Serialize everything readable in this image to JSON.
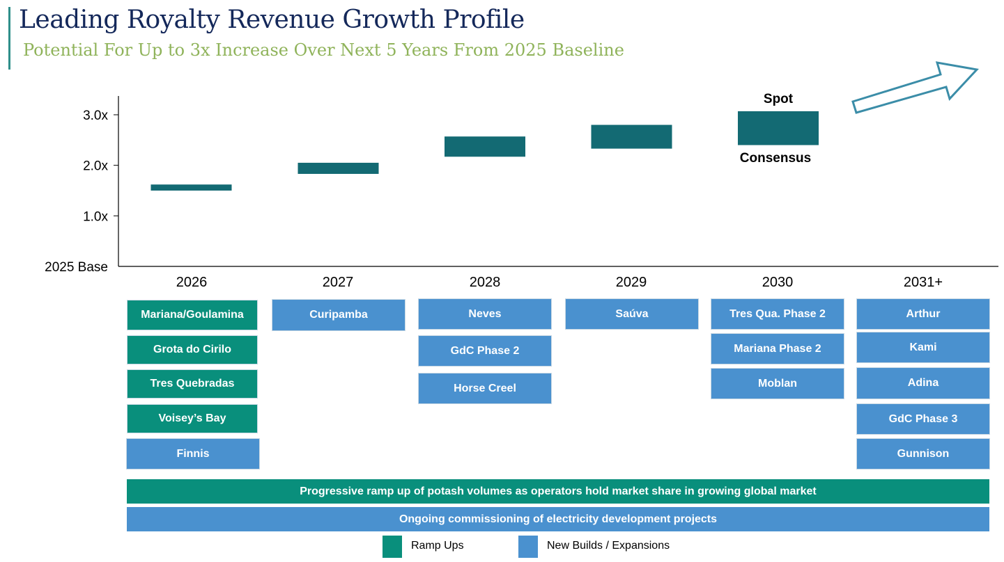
{
  "header": {
    "title": "Leading Royalty Revenue Growth Profile",
    "subtitle": "Potential For Up to 3x Increase Over Next 5 Years From 2025 Baseline"
  },
  "colors": {
    "bar": "#136a73",
    "ramp": "#098f7c",
    "new": "#4a91cf",
    "title": "#14285a",
    "subtitle": "#8fb35a",
    "arrow": "#3b8da8"
  },
  "chart_data": {
    "type": "bar",
    "subtype": "floating-range",
    "title": "Leading Royalty Revenue Growth Profile",
    "categories": [
      "2026",
      "2027",
      "2028",
      "2029",
      "2030"
    ],
    "series": [
      {
        "name": "Consensus (low)",
        "values": [
          1.5,
          1.83,
          2.17,
          2.33,
          2.4
        ]
      },
      {
        "name": "Spot (high)",
        "values": [
          1.62,
          2.05,
          2.57,
          2.8,
          3.07
        ]
      }
    ],
    "y_tick_labels": [
      "2025 Base",
      "1.0x",
      "2.0x",
      "3.0x"
    ],
    "y_tick_values": [
      0,
      1,
      2,
      3
    ],
    "ylim": [
      0,
      3.4
    ],
    "annotations": {
      "high_label": "Spot",
      "low_label": "Consensus"
    },
    "grid": false
  },
  "years": [
    "2026",
    "2027",
    "2028",
    "2029",
    "2030",
    "2031+"
  ],
  "projects": {
    "c2026": [
      {
        "label": "Mariana/Goulamina",
        "kind": "ramp"
      },
      {
        "label": "Grota do Cirilo",
        "kind": "ramp"
      },
      {
        "label": "Tres Quebradas",
        "kind": "ramp"
      },
      {
        "label": "Voisey’s Bay",
        "kind": "ramp"
      },
      {
        "label": "Finnis",
        "kind": "new"
      }
    ],
    "c2027": [
      {
        "label": "Curipamba",
        "kind": "new"
      }
    ],
    "c2028": [
      {
        "label": "Neves",
        "kind": "new"
      },
      {
        "label": "GdC Phase 2",
        "kind": "new"
      },
      {
        "label": "Horse Creel",
        "kind": "new"
      }
    ],
    "c2029": [
      {
        "label": "Saúva",
        "kind": "new"
      }
    ],
    "c2030": [
      {
        "label": "Tres Qua. Phase 2",
        "kind": "new"
      },
      {
        "label": "Mariana Phase 2",
        "kind": "new"
      },
      {
        "label": "Moblan",
        "kind": "new"
      }
    ],
    "c2031": [
      {
        "label": "Arthur",
        "kind": "new"
      },
      {
        "label": "Kami",
        "kind": "new"
      },
      {
        "label": "Adina",
        "kind": "new"
      },
      {
        "label": "GdC Phase 3",
        "kind": "new"
      },
      {
        "label": "Gunnison",
        "kind": "new"
      }
    ]
  },
  "bands": {
    "potash": "Progressive ramp up of potash volumes as operators hold market share in growing global market",
    "electricity": "Ongoing commissioning of electricity development projects"
  },
  "legend": {
    "ramp": "Ramp Ups",
    "new": "New Builds / Expansions"
  }
}
